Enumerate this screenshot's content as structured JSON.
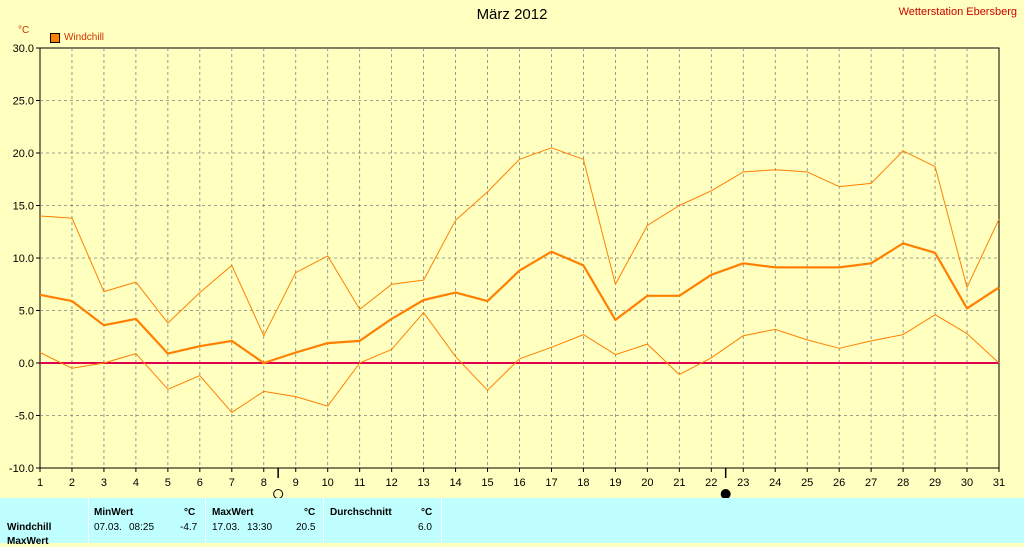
{
  "header": {
    "title": "März 2012",
    "station": "Wetterstation Ebersberg",
    "unit": "°C"
  },
  "stats": {
    "row_label": "Windchill",
    "row2_label": "MaxWert",
    "min_label": "MinWert",
    "min_unit": "°C",
    "min_date": "07.03.",
    "min_time": "08:25",
    "min_value": "-4.7",
    "max_label": "MaxWert",
    "max_unit": "°C",
    "max_date": "17.03.",
    "max_time": "13:30",
    "max_value": "20.5",
    "avg_label": "Durchschnitt",
    "avg_unit": "°C",
    "avg_value": "6.0"
  },
  "colors": {
    "background": "#ffffc0",
    "series": "#ff8000",
    "zero_line": "#e0004c",
    "grid": "#808080",
    "stats_bg": "#c0ffff"
  },
  "chart_data": {
    "type": "line",
    "title": "März 2012",
    "ylabel": "°C",
    "ylim": [
      -10,
      30
    ],
    "yticks": [
      "-10.0",
      "-5.0",
      "0.0",
      "5.0",
      "10.0",
      "15.0",
      "20.0",
      "25.0",
      "30.0"
    ],
    "x": [
      1,
      2,
      3,
      4,
      5,
      6,
      7,
      8,
      9,
      10,
      11,
      12,
      13,
      14,
      15,
      16,
      17,
      18,
      19,
      20,
      21,
      22,
      23,
      24,
      25,
      26,
      27,
      28,
      29,
      30,
      31
    ],
    "grid": true,
    "legend": "top-left",
    "moon_phases": [
      {
        "day": 8,
        "icon": "full-moon-icon"
      },
      {
        "day": 22,
        "icon": "new-moon-icon"
      }
    ],
    "series": [
      {
        "name": "Windchill",
        "role": "mean",
        "values": [
          6.5,
          5.9,
          3.6,
          4.2,
          0.9,
          1.6,
          2.1,
          0.0,
          1.0,
          1.9,
          2.1,
          4.2,
          6.0,
          6.7,
          5.9,
          8.8,
          10.6,
          9.3,
          4.1,
          6.4,
          6.4,
          8.4,
          9.5,
          9.1,
          9.1,
          9.1,
          9.5,
          11.4,
          10.5,
          5.2,
          7.2
        ]
      },
      {
        "role": "max",
        "values": [
          14.0,
          13.8,
          6.8,
          7.7,
          3.8,
          6.7,
          9.3,
          2.6,
          8.6,
          10.2,
          5.1,
          7.5,
          7.9,
          13.6,
          16.3,
          19.4,
          20.5,
          19.4,
          7.5,
          13.1,
          15.0,
          16.4,
          18.2,
          18.4,
          18.2,
          16.8,
          17.1,
          20.2,
          18.7,
          7.2,
          13.7
        ]
      },
      {
        "role": "min",
        "values": [
          1.0,
          -0.5,
          0.0,
          0.9,
          -2.5,
          -1.2,
          -4.7,
          -2.7,
          -3.2,
          -4.1,
          0.0,
          1.3,
          4.8,
          0.6,
          -2.6,
          0.4,
          1.5,
          2.7,
          0.8,
          1.8,
          -1.1,
          0.5,
          2.6,
          3.2,
          2.2,
          1.4,
          2.1,
          2.7,
          4.6,
          2.8,
          0.0
        ]
      }
    ]
  }
}
